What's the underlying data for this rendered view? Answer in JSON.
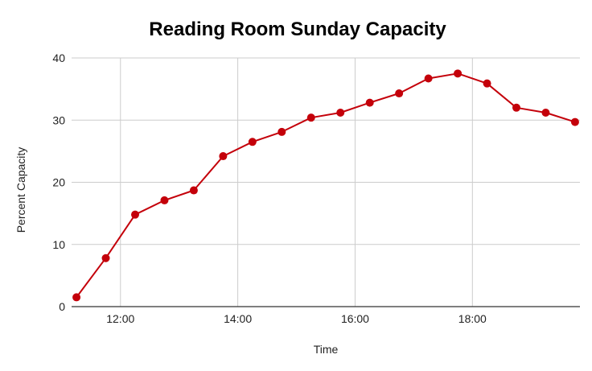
{
  "chart_data": {
    "type": "line",
    "title": "Reading Room Sunday Capacity",
    "xlabel": "Time",
    "ylabel": "Percent Capacity",
    "xlim": [
      "11:10",
      "19:50"
    ],
    "ylim": [
      0,
      40
    ],
    "y_ticks": [
      0,
      10,
      20,
      30,
      40
    ],
    "x_ticks": [
      "12:00",
      "14:00",
      "16:00",
      "18:00"
    ],
    "grid": true,
    "legend": "none",
    "series": [
      {
        "color": "#c4000a",
        "points": [
          {
            "x": "11:15",
            "y": 1.5
          },
          {
            "x": "11:45",
            "y": 7.8
          },
          {
            "x": "12:15",
            "y": 14.8
          },
          {
            "x": "12:45",
            "y": 17.1
          },
          {
            "x": "13:15",
            "y": 18.7
          },
          {
            "x": "13:45",
            "y": 24.2
          },
          {
            "x": "14:15",
            "y": 26.5
          },
          {
            "x": "14:45",
            "y": 28.1
          },
          {
            "x": "15:15",
            "y": 30.4
          },
          {
            "x": "15:45",
            "y": 31.2
          },
          {
            "x": "16:15",
            "y": 32.8
          },
          {
            "x": "16:45",
            "y": 34.3
          },
          {
            "x": "17:15",
            "y": 36.7
          },
          {
            "x": "17:45",
            "y": 37.5
          },
          {
            "x": "18:15",
            "y": 35.9
          },
          {
            "x": "18:45",
            "y": 32.0
          },
          {
            "x": "19:15",
            "y": 31.2
          },
          {
            "x": "19:45",
            "y": 29.7
          }
        ]
      }
    ]
  }
}
